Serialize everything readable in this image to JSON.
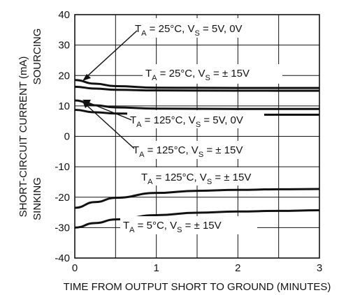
{
  "chart_data": {
    "type": "line",
    "xlabel": "TIME FROM OUTPUT SHORT TO GROUND (MINUTES)",
    "ylabel": "SHORT-CIRCUIT CURRENT (mA)",
    "ylabel_sourcing": "SOURCING",
    "ylabel_sinking": "SINKING",
    "xlim": [
      0,
      3
    ],
    "ylim": [
      -40,
      40
    ],
    "x_ticks": [
      "0",
      "1",
      "2",
      "3"
    ],
    "y_ticks": [
      "40",
      "30",
      "20",
      "10",
      "0",
      "-10",
      "-20",
      "-30",
      "-40"
    ],
    "grid": true,
    "series": [
      {
        "name": "TA = 25°C, VS = 5V, 0V",
        "label_parts": [
          "T",
          "A",
          " = 25°C, V",
          "S",
          " = 5V, 0V"
        ],
        "x": [
          0,
          0.25,
          0.5,
          1,
          2,
          3
        ],
        "y": [
          16.3,
          15.7,
          15.3,
          15.1,
          15.0,
          15.0
        ]
      },
      {
        "name": "TA = 25°C, VS = ± 15V",
        "label_parts": [
          "T",
          "A",
          " = 25°C, V",
          "S",
          " = ± 15V"
        ],
        "x": [
          0,
          0.25,
          0.5,
          1,
          2,
          3
        ],
        "y": [
          18.5,
          17.3,
          16.5,
          16.0,
          15.9,
          15.9
        ]
      },
      {
        "name": "TA = 125°C, VS = 5V, 0V",
        "label_parts": [
          "T",
          "A",
          " = 125°C, V",
          "S",
          " = 5V, 0V"
        ],
        "x": [
          0,
          0.25,
          0.5,
          1,
          2,
          3
        ],
        "y": [
          8.7,
          7.9,
          7.5,
          7.2,
          7.1,
          7.1
        ]
      },
      {
        "name": "TA = 125°C, VS = ± 15V",
        "label_parts": [
          "T",
          "A",
          " = 125°C, V",
          "S",
          " = ± 15V"
        ],
        "x": [
          0,
          0.25,
          0.5,
          1,
          2,
          3
        ],
        "y": [
          11.8,
          10.2,
          9.5,
          9.1,
          9.0,
          9.0
        ]
      },
      {
        "name": "TA = 125°C, VS = ± 15V (sinking)",
        "label_parts": [
          "T",
          "A",
          " = 125°C, V",
          "S",
          " = ± 15V"
        ],
        "x": [
          0,
          0.25,
          0.5,
          1,
          1.5,
          2,
          2.5,
          3
        ],
        "y": [
          -23.5,
          -21.6,
          -20.2,
          -18.6,
          -17.9,
          -17.6,
          -17.4,
          -17.3
        ]
      },
      {
        "name": "TA = 5°C, VS = ± 15V",
        "label_parts": [
          "T",
          "A",
          " = 5°C, V",
          "S",
          " = ± 15V"
        ],
        "x": [
          0,
          0.25,
          0.5,
          1,
          1.5,
          2,
          2.5,
          3
        ],
        "y": [
          -30.0,
          -28.5,
          -27.3,
          -25.9,
          -25.1,
          -24.7,
          -24.5,
          -24.3
        ]
      }
    ]
  }
}
